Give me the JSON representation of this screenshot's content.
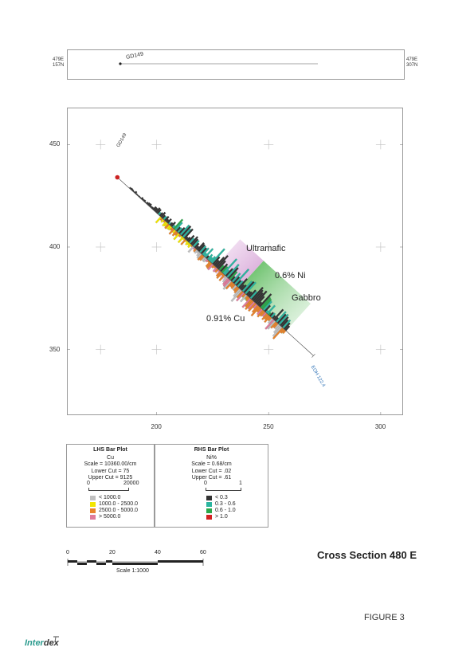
{
  "plan_view": {
    "left_east": "479E",
    "left_north": "157N",
    "right_east": "479E",
    "right_north": "307N",
    "hole_label": "GD149"
  },
  "section": {
    "y_ticks": [
      {
        "value": 450,
        "label": "450"
      },
      {
        "value": 400,
        "label": "400"
      },
      {
        "value": 350,
        "label": "350"
      }
    ],
    "x_ticks": [
      {
        "value": 200,
        "label": "200"
      },
      {
        "value": 250,
        "label": "250"
      },
      {
        "value": 300,
        "label": "300"
      }
    ],
    "x_range": [
      160,
      310
    ],
    "y_range": [
      318,
      468
    ],
    "hole_label": "GD149",
    "eoh_label": "EOH 122.4",
    "zones": {
      "ultramafic": "Ultramafic",
      "gabbro": "Gabbro",
      "ni_grade": "0.6% Ni",
      "cu_grade": "0.91% Cu"
    },
    "colors": {
      "ultramafic": "#d9a6d9",
      "gabbro": "#5cbf5c",
      "collar": "#cc2222",
      "eoh_text": "#2a6fb5"
    }
  },
  "legend_lhs": {
    "title": "LHS Bar Plot",
    "element": "Cu",
    "scale": "Scale = 10360.00/cm",
    "lower_cut": "Lower Cut = 75",
    "upper_cut": "Upper Cut = 9125",
    "axis_min": "0",
    "axis_max": "20000",
    "items": [
      {
        "label": "< 1000.0",
        "color": "#c0c0c0"
      },
      {
        "label": "1000.0 - 2500.0",
        "color": "#f2e600"
      },
      {
        "label": "2500.0 - 5000.0",
        "color": "#e8832a"
      },
      {
        "label": "> 5000.0",
        "color": "#e07a9a"
      }
    ]
  },
  "legend_rhs": {
    "title": "RHS Bar Plot",
    "element": "Ni%",
    "scale": "Scale = 0.68/cm",
    "lower_cut": "Lower Cut = .02",
    "upper_cut": "Upper Cut = .61",
    "axis_min": "0",
    "axis_max": "1",
    "items": [
      {
        "label": "< 0.3",
        "color": "#333333"
      },
      {
        "label": "0.3 - 0.6",
        "color": "#2bb5a0"
      },
      {
        "label": "0.6 - 1.0",
        "color": "#2aa84a"
      },
      {
        "label": "> 1.0",
        "color": "#d42222"
      }
    ]
  },
  "scale_bar": {
    "labels": [
      "0",
      "20",
      "40",
      "60"
    ],
    "caption": "Scale 1:1000"
  },
  "title": "Cross Section 480 E",
  "figure": "FIGURE 3",
  "logo": {
    "part1": "Inter",
    "part2": "dex"
  }
}
